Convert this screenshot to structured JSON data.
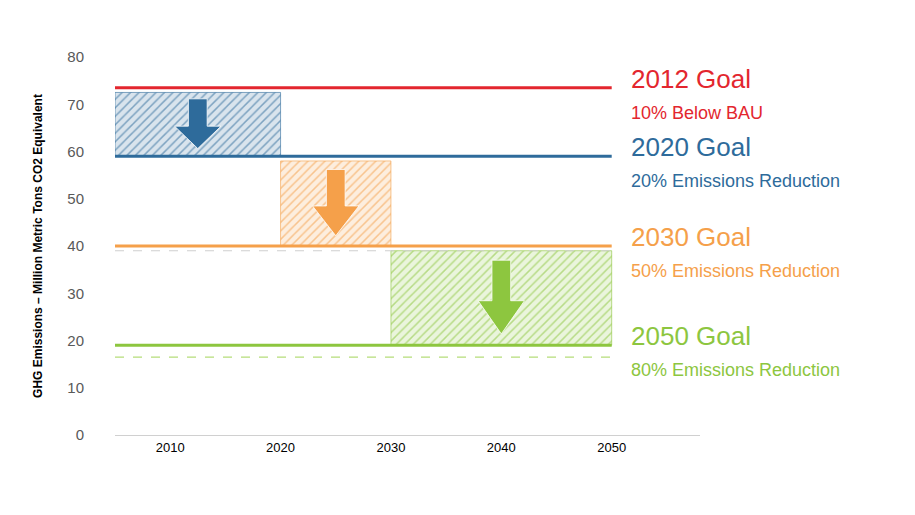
{
  "chart_data": {
    "type": "line",
    "ylabel": "GHG Emissions – Million Metric Tons CO2 Equivalent",
    "xlim": [
      2005,
      2058
    ],
    "xticks": [
      2010,
      2020,
      2030,
      2040,
      2050
    ],
    "ylim": [
      0,
      80
    ],
    "yticks": [
      0,
      10,
      20,
      30,
      40,
      50,
      60,
      70,
      80
    ],
    "grid": false,
    "x": [
      2005,
      2050
    ],
    "series": [
      {
        "name": "2012 Goal",
        "description": "10% Below BAU",
        "color": "#e3262e",
        "values": [
          73.5,
          73.5
        ]
      },
      {
        "name": "2020 Goal",
        "description": "20% Emissions Reduction",
        "color": "#2e6b9b",
        "values": [
          59,
          59
        ]
      },
      {
        "name": "2030 Goal",
        "description": "50% Emissions Reduction",
        "color": "#f5a04a",
        "values": [
          40,
          40
        ]
      },
      {
        "name": "2050 Goal",
        "description": "80% Emissions Reduction",
        "color": "#8dc63f",
        "values": [
          19,
          19
        ]
      },
      {
        "color": "#cfcfcf",
        "line_style": "dashed",
        "values": [
          39,
          39
        ]
      },
      {
        "color": "#b5dd7a",
        "line_style": "dashed",
        "values": [
          16.5,
          16.5
        ]
      }
    ],
    "reductions": [
      {
        "color": "#2e6b9b",
        "x": [
          2005,
          2020
        ],
        "y": [
          59,
          72.5
        ]
      },
      {
        "color": "#f5a04a",
        "x": [
          2020,
          2030
        ],
        "y": [
          40,
          58
        ]
      },
      {
        "color": "#8dc63f",
        "x": [
          2030,
          2050
        ],
        "y": [
          19,
          39
        ]
      }
    ]
  }
}
